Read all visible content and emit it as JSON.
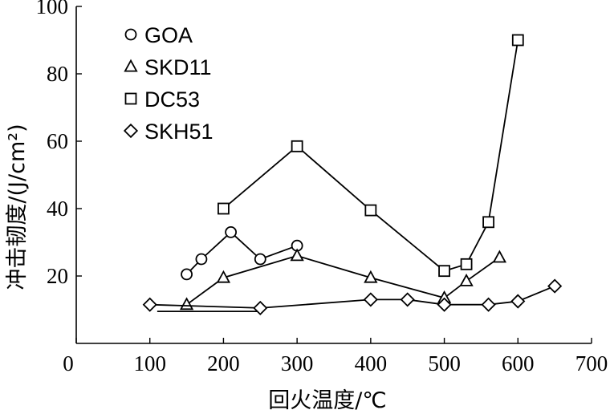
{
  "chart_data": {
    "type": "line",
    "xlabel": "回火温度/℃",
    "ylabel": "冲击韧度/(J/cm²)",
    "xlim": [
      0,
      700
    ],
    "ylim": [
      0,
      100
    ],
    "xticks": [
      0,
      100,
      200,
      300,
      400,
      500,
      600,
      700
    ],
    "yticks": [
      20,
      40,
      60,
      80,
      100
    ],
    "grid": false,
    "legend": "top-left",
    "series": [
      {
        "name": "GOA",
        "marker": "circle",
        "x": [
          150,
          170,
          210,
          250,
          300
        ],
        "y": [
          20.5,
          25,
          33,
          25,
          29
        ]
      },
      {
        "name": "SKD11",
        "marker": "triangle",
        "x": [
          150,
          200,
          300,
          400,
          500,
          530,
          575
        ],
        "y": [
          11.5,
          19.5,
          26,
          19.5,
          13.5,
          18.5,
          25.5
        ]
      },
      {
        "name": "DC53",
        "marker": "square",
        "x": [
          200,
          300,
          400,
          500,
          530,
          560,
          600
        ],
        "y": [
          40,
          58.5,
          39.5,
          21.5,
          23.5,
          36,
          90
        ]
      },
      {
        "name": "SKH51",
        "marker": "diamond",
        "x": [
          100,
          250,
          400,
          450,
          500,
          560,
          600,
          650
        ],
        "y": [
          11.5,
          10.5,
          13,
          13,
          11.5,
          11.5,
          12.5,
          17
        ]
      }
    ],
    "extra_segments": [
      {
        "series": "SKH51",
        "x": [
          110,
          250
        ],
        "y": [
          9.5,
          9.5
        ]
      }
    ]
  }
}
